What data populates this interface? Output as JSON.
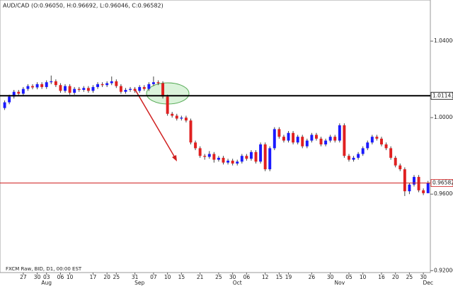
{
  "chart_data": {
    "type": "candlestick",
    "title": "AUD/CAD (O:0.96050, H:0.96692, L:0.96046, C:0.96582)",
    "note": "FXCM Raw, BID, D1, 00:00 EST",
    "up_color": "#1a1aff",
    "down_color": "#e02020",
    "open": [
      1.005,
      1.008,
      1.011,
      1.0135,
      1.0125,
      1.015,
      1.0165,
      1.0158,
      1.0175,
      1.016,
      1.0185,
      1.019,
      1.017,
      1.014,
      1.0165,
      1.013,
      1.015,
      1.0145,
      1.0155,
      1.014,
      1.016,
      1.0175,
      1.017,
      1.018,
      1.019,
      1.0165,
      1.0135,
      1.0145,
      1.015,
      1.014,
      1.016,
      1.015,
      1.0175,
      1.0185,
      1.018,
      1.011,
      1.002,
      1.001,
      0.9995,
      1.0,
      0.9985,
      0.987,
      0.984,
      0.98,
      0.9795,
      0.981,
      0.978,
      0.979,
      0.9765,
      0.9775,
      0.976,
      0.977,
      0.98,
      0.9785,
      0.982,
      0.977,
      0.986,
      0.973,
      0.984,
      0.994,
      0.99,
      0.988,
      0.992,
      0.987,
      0.99,
      0.985,
      0.988,
      0.991,
      0.989,
      0.986,
      0.988,
      0.99,
      0.988,
      0.996,
      0.98,
      0.978,
      0.979,
      0.981,
      0.984,
      0.987,
      0.99,
      0.989,
      0.986,
      0.984,
      0.979,
      0.975,
      0.973,
      0.9615,
      0.965,
      0.969,
      0.962,
      0.9605
    ],
    "high": [
      1.009,
      1.012,
      1.0145,
      1.0145,
      1.016,
      1.0175,
      1.0175,
      1.0185,
      1.0185,
      1.0195,
      1.022,
      1.02,
      1.018,
      1.0175,
      1.0175,
      1.016,
      1.016,
      1.0165,
      1.0165,
      1.017,
      1.0185,
      1.0185,
      1.019,
      1.0215,
      1.02,
      1.0175,
      1.0155,
      1.016,
      1.016,
      1.017,
      1.017,
      1.0185,
      1.0215,
      1.0195,
      1.019,
      1.012,
      1.003,
      1.002,
      1.001,
      1.001,
      0.9995,
      0.988,
      0.985,
      0.981,
      0.9825,
      0.982,
      0.98,
      0.98,
      0.9785,
      0.9785,
      0.978,
      0.981,
      0.981,
      0.983,
      0.983,
      0.987,
      0.987,
      0.985,
      0.995,
      0.995,
      0.991,
      0.993,
      0.993,
      0.991,
      0.991,
      0.989,
      0.992,
      0.992,
      0.99,
      0.989,
      0.991,
      0.991,
      0.997,
      0.997,
      0.981,
      0.98,
      0.982,
      0.985,
      0.988,
      0.991,
      0.991,
      0.99,
      0.987,
      0.985,
      0.98,
      0.976,
      0.974,
      0.966,
      0.97,
      0.97,
      0.963,
      0.96692
    ],
    "low": [
      1.004,
      1.007,
      1.01,
      1.0115,
      1.0115,
      1.014,
      1.0148,
      1.0148,
      1.015,
      1.015,
      1.0175,
      1.016,
      1.013,
      1.013,
      1.012,
      1.012,
      1.0135,
      1.0135,
      1.013,
      1.013,
      1.015,
      1.016,
      1.016,
      1.017,
      1.0155,
      1.0125,
      1.0125,
      1.0135,
      1.013,
      1.013,
      1.014,
      1.014,
      1.0165,
      1.017,
      1.01,
      1.001,
      1.0,
      0.9985,
      0.9985,
      0.9975,
      0.986,
      0.983,
      0.979,
      0.978,
      0.9785,
      0.9765,
      0.977,
      0.9755,
      0.9755,
      0.975,
      0.975,
      0.976,
      0.9775,
      0.9775,
      0.976,
      0.976,
      0.972,
      0.972,
      0.983,
      0.989,
      0.987,
      0.987,
      0.986,
      0.986,
      0.984,
      0.984,
      0.987,
      0.988,
      0.985,
      0.985,
      0.987,
      0.987,
      0.987,
      0.979,
      0.977,
      0.977,
      0.978,
      0.98,
      0.983,
      0.986,
      0.988,
      0.985,
      0.983,
      0.978,
      0.974,
      0.972,
      0.959,
      0.96,
      0.964,
      0.961,
      0.9595,
      0.96046
    ],
    "close": [
      1.008,
      1.011,
      1.0135,
      1.0125,
      1.015,
      1.0165,
      1.0158,
      1.0175,
      1.016,
      1.0185,
      1.019,
      1.017,
      1.014,
      1.0165,
      1.013,
      1.015,
      1.0145,
      1.0155,
      1.014,
      1.016,
      1.0175,
      1.017,
      1.018,
      1.019,
      1.0165,
      1.0135,
      1.0145,
      1.015,
      1.014,
      1.016,
      1.015,
      1.0175,
      1.0185,
      1.018,
      1.011,
      1.002,
      1.001,
      0.9995,
      1.0,
      0.9985,
      0.987,
      0.984,
      0.98,
      0.9795,
      0.981,
      0.978,
      0.979,
      0.9765,
      0.9775,
      0.976,
      0.977,
      0.98,
      0.9785,
      0.982,
      0.977,
      0.986,
      0.973,
      0.984,
      0.994,
      0.99,
      0.988,
      0.992,
      0.987,
      0.99,
      0.985,
      0.988,
      0.991,
      0.989,
      0.986,
      0.988,
      0.99,
      0.988,
      0.996,
      0.98,
      0.978,
      0.979,
      0.981,
      0.984,
      0.987,
      0.99,
      0.989,
      0.986,
      0.984,
      0.979,
      0.975,
      0.973,
      0.9615,
      0.965,
      0.969,
      0.962,
      0.9605,
      0.96582
    ],
    "xlim": [
      -1,
      91.5
    ],
    "xticks": [
      {
        "value": 4,
        "label": "27"
      },
      {
        "value": 7,
        "label": "30"
      },
      {
        "value": 9,
        "label": "03"
      },
      {
        "value": 12,
        "label": "06"
      },
      {
        "value": 14,
        "label": "10"
      },
      {
        "value": 19,
        "label": "17"
      },
      {
        "value": 22,
        "label": "20"
      },
      {
        "value": 24,
        "label": "25"
      },
      {
        "value": 28,
        "label": "31"
      },
      {
        "value": 32,
        "label": "07"
      },
      {
        "value": 35,
        "label": "10"
      },
      {
        "value": 38,
        "label": "15"
      },
      {
        "value": 42,
        "label": "21"
      },
      {
        "value": 46,
        "label": "25"
      },
      {
        "value": 49,
        "label": "30"
      },
      {
        "value": 52,
        "label": "06"
      },
      {
        "value": 56,
        "label": "12"
      },
      {
        "value": 59,
        "label": "15"
      },
      {
        "value": 61,
        "label": "19"
      },
      {
        "value": 66,
        "label": "26"
      },
      {
        "value": 70,
        "label": "30"
      },
      {
        "value": 74,
        "label": "05"
      },
      {
        "value": 77,
        "label": "10"
      },
      {
        "value": 81,
        "label": "16"
      },
      {
        "value": 84,
        "label": "20"
      },
      {
        "value": 87,
        "label": "25"
      },
      {
        "value": 90,
        "label": "30"
      }
    ],
    "month_ticks": [
      {
        "value": 9,
        "label": "Aug"
      },
      {
        "value": 29,
        "label": "Sep"
      },
      {
        "value": 50,
        "label": "Oct"
      },
      {
        "value": 72,
        "label": "Nov"
      },
      {
        "value": 91,
        "label": "Dec"
      }
    ],
    "ylim": [
      0.919,
      1.0615
    ],
    "yticks": [
      {
        "value": 0.92,
        "label": "0.92000"
      },
      {
        "value": 0.96,
        "label": "0.96000"
      },
      {
        "value": 1.0,
        "label": "1.00000"
      },
      {
        "value": 1.04,
        "label": "1.04000"
      }
    ],
    "hlines": [
      {
        "value": 1.01143,
        "color": "#000000"
      },
      {
        "value": 0.96582,
        "color": "#d02020"
      }
    ]
  }
}
